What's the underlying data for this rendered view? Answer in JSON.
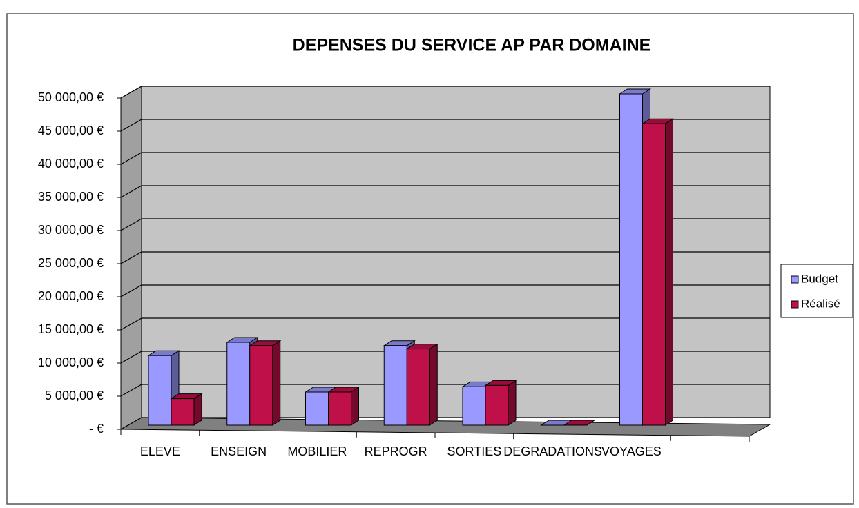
{
  "chart_data": {
    "type": "bar3d",
    "title": "DEPENSES DU SERVICE AP PAR DOMAINE",
    "categories": [
      "ELEVE",
      "ENSEIGN",
      "MOBILIER",
      "REPROGR",
      "SORTIES",
      "DEGRADATIONS",
      "VOYAGES",
      null
    ],
    "series": [
      {
        "name": "Budget",
        "color": "#9999ff",
        "values": [
          10500,
          12500,
          5000,
          12000,
          5800,
          0,
          50000,
          null
        ]
      },
      {
        "name": "Réalisé",
        "color": "#c0104a",
        "values": [
          4000,
          12000,
          5000,
          11500,
          6000,
          0,
          45500,
          null
        ]
      }
    ],
    "ylim": [
      0,
      50000
    ],
    "yticks": [
      {
        "value": 0,
        "label": "-   €"
      },
      {
        "value": 5000,
        "label": "5 000,00 €"
      },
      {
        "value": 10000,
        "label": "10 000,00 €"
      },
      {
        "value": 15000,
        "label": "15 000,00 €"
      },
      {
        "value": 20000,
        "label": "20 000,00 €"
      },
      {
        "value": 25000,
        "label": "25 000,00 €"
      },
      {
        "value": 30000,
        "label": "30 000,00 €"
      },
      {
        "value": 35000,
        "label": "35 000,00 €"
      },
      {
        "value": 40000,
        "label": "40 000,00 €"
      },
      {
        "value": 45000,
        "label": "45 000,00 €"
      },
      {
        "value": 50000,
        "label": "50 000,00 €"
      }
    ],
    "grid": true,
    "legend": "right"
  }
}
